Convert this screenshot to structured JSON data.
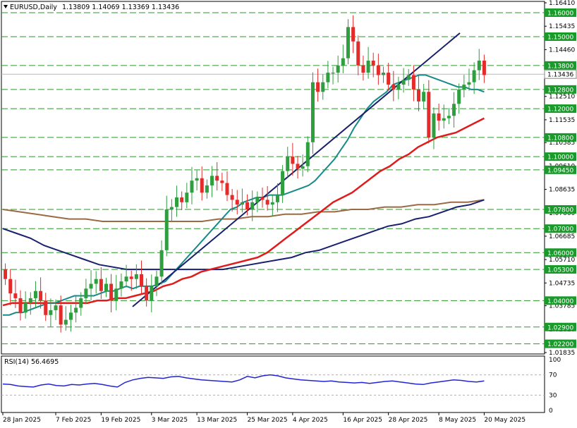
{
  "header": {
    "symbol": "EURUSD,Daily",
    "ohlc": "1.13809 1.14069 1.13369 1.13436"
  },
  "rsi": {
    "label": "RSI(14) 56.4695",
    "levels": [
      100,
      70,
      30,
      0
    ],
    "value": 56.4695
  },
  "colors": {
    "bull": "#2e9e3e",
    "bear": "#e52a2a",
    "sma20": "#178a8a",
    "sma50": "#e01b1b",
    "sma100": "#1a1f6e",
    "sma200": "#9b6a44",
    "trendline": "#1a1f6e",
    "level_line": "#2a9a2a",
    "rsi_line": "#2323d6",
    "badge": "#1a9a2a"
  },
  "chart_data": {
    "type": "candlestick",
    "title": "EURUSD,Daily",
    "ylim": [
      1.01835,
      1.1641
    ],
    "price_ticks": [
      "1.16410",
      "1.15435",
      "1.14460",
      "1.13436",
      "1.12510",
      "1.11535",
      "1.10585",
      "1.09610",
      "1.08635",
      "1.07660",
      "1.06685",
      "1.05710",
      "1.04735",
      "1.03785",
      "1.02810",
      "1.01835"
    ],
    "level_badges": [
      "1.16000",
      "1.15000",
      "1.13800",
      "1.12800",
      "1.12000",
      "1.10800",
      "1.10000",
      "1.09450",
      "1.07800",
      "1.07000",
      "1.06000",
      "1.05300",
      "1.04000",
      "1.02900",
      "1.02200"
    ],
    "current_price": "1.13436",
    "x_labels": [
      "28 Jan 2025",
      "7 Feb 2025",
      "19 Feb 2025",
      "3 Mar 2025",
      "13 Mar 2025",
      "25 Mar 2025",
      "4 Apr 2025",
      "16 Apr 2025",
      "28 Apr 2025",
      "8 May 2025",
      "20 May 2025"
    ],
    "closes": [
      1.049,
      1.043,
      1.041,
      1.035,
      1.039,
      1.041,
      1.044,
      1.04,
      1.034,
      1.036,
      1.038,
      1.03,
      1.032,
      1.035,
      1.037,
      1.041,
      1.045,
      1.047,
      1.049,
      1.044,
      1.047,
      1.04,
      1.045,
      1.048,
      1.05,
      1.049,
      1.051,
      1.046,
      1.04,
      1.046,
      1.05,
      1.061,
      1.078,
      1.079,
      1.083,
      1.081,
      1.085,
      1.09,
      1.091,
      1.085,
      1.088,
      1.092,
      1.09,
      1.089,
      1.084,
      1.082,
      1.08,
      1.081,
      1.078,
      1.081,
      1.083,
      1.082,
      1.08,
      1.081,
      1.084,
      1.094,
      1.1,
      1.097,
      1.095,
      1.096,
      1.106,
      1.131,
      1.127,
      1.131,
      1.135,
      1.135,
      1.138,
      1.141,
      1.154,
      1.148,
      1.138,
      1.135,
      1.14,
      1.138,
      1.134,
      1.135,
      1.13,
      1.128,
      1.13,
      1.132,
      1.134,
      1.128,
      1.123,
      1.127,
      1.108,
      1.118,
      1.115,
      1.116,
      1.117,
      1.122,
      1.128,
      1.13,
      1.131,
      1.136,
      1.14,
      1.134
    ],
    "sma20": [
      1.034,
      1.034,
      1.035,
      1.035,
      1.036,
      1.037,
      1.038,
      1.039,
      1.039,
      1.04,
      1.041,
      1.042,
      1.042,
      1.042,
      1.042,
      1.043,
      1.044,
      1.044,
      1.045,
      1.046,
      1.045,
      1.046,
      1.046,
      1.046,
      1.047,
      1.048,
      1.051,
      1.054,
      1.057,
      1.06,
      1.063,
      1.066,
      1.069,
      1.072,
      1.075,
      1.078,
      1.079,
      1.081,
      1.082,
      1.083,
      1.083,
      1.084,
      1.084,
      1.084,
      1.085,
      1.086,
      1.087,
      1.088,
      1.09,
      1.093,
      1.096,
      1.099,
      1.103,
      1.107,
      1.112,
      1.116,
      1.12,
      1.123,
      1.125,
      1.127,
      1.13,
      1.131,
      1.132,
      1.133,
      1.134,
      1.134,
      1.133,
      1.132,
      1.131,
      1.13,
      1.129,
      1.129,
      1.128,
      1.128,
      1.127
    ],
    "sma50": [
      1.038,
      1.039,
      1.039,
      1.039,
      1.039,
      1.039,
      1.039,
      1.039,
      1.039,
      1.039,
      1.04,
      1.04,
      1.041,
      1.041,
      1.042,
      1.043,
      1.044,
      1.046,
      1.047,
      1.049,
      1.05,
      1.052,
      1.053,
      1.054,
      1.055,
      1.056,
      1.057,
      1.058,
      1.06,
      1.063,
      1.066,
      1.069,
      1.072,
      1.075,
      1.078,
      1.081,
      1.083,
      1.085,
      1.088,
      1.091,
      1.094,
      1.096,
      1.099,
      1.101,
      1.104,
      1.106,
      1.108,
      1.109,
      1.11,
      1.112,
      1.114,
      1.116
    ],
    "sma100": [
      1.07,
      1.068,
      1.066,
      1.063,
      1.061,
      1.059,
      1.057,
      1.055,
      1.054,
      1.053,
      1.053,
      1.053,
      1.053,
      1.053,
      1.053,
      1.053,
      1.053,
      1.054,
      1.055,
      1.056,
      1.057,
      1.058,
      1.06,
      1.061,
      1.063,
      1.065,
      1.067,
      1.069,
      1.071,
      1.072,
      1.074,
      1.075,
      1.077,
      1.079,
      1.08,
      1.082
    ],
    "sma200": [
      1.078,
      1.077,
      1.076,
      1.075,
      1.074,
      1.074,
      1.073,
      1.073,
      1.073,
      1.073,
      1.073,
      1.073,
      1.073,
      1.074,
      1.074,
      1.075,
      1.075,
      1.076,
      1.076,
      1.077,
      1.077,
      1.078,
      1.078,
      1.079,
      1.079,
      1.08,
      1.08,
      1.081,
      1.081,
      1.082
    ],
    "rsi_values": [
      52,
      51,
      48,
      47,
      46,
      50,
      52,
      49,
      48,
      51,
      50,
      52,
      53,
      51,
      48,
      46,
      55,
      60,
      63,
      65,
      64,
      63,
      66,
      67,
      64,
      62,
      60,
      59,
      58,
      57,
      56,
      60,
      67,
      64,
      68,
      70,
      68,
      64,
      62,
      60,
      59,
      58,
      57,
      58,
      56,
      55,
      54,
      55,
      53,
      55,
      57,
      58,
      56,
      54,
      52,
      51,
      54,
      56,
      58,
      60,
      59,
      57,
      56,
      58
    ],
    "grid": false
  }
}
